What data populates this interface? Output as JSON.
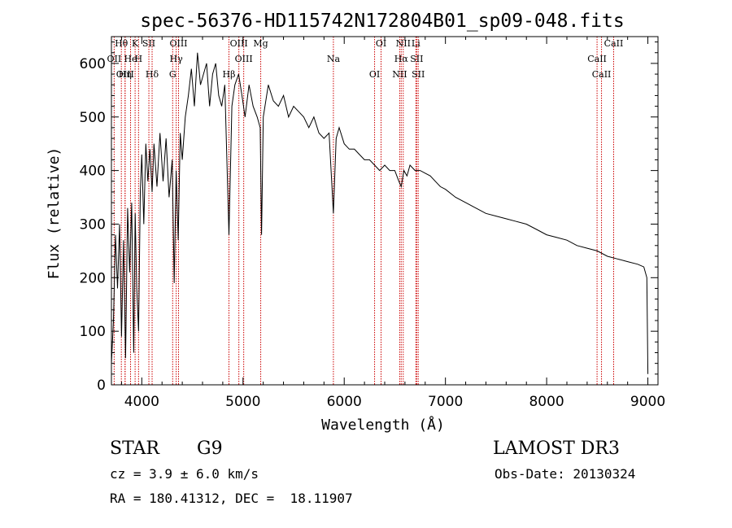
{
  "chart_data": {
    "type": "line",
    "title": "spec-56376-HD115742N172804B01_sp09-048.fits",
    "xlabel": "Wavelength (Å)",
    "ylabel": "Flux (relative)",
    "xlim": [
      3700,
      9100
    ],
    "ylim": [
      0,
      650
    ],
    "xticks": [
      4000,
      5000,
      6000,
      7000,
      8000,
      9000
    ],
    "yticks": [
      0,
      100,
      200,
      300,
      400,
      500,
      600
    ],
    "grid": false,
    "series": [
      {
        "name": "Flux",
        "x": [
          3700,
          3720,
          3740,
          3760,
          3780,
          3800,
          3820,
          3840,
          3860,
          3880,
          3900,
          3920,
          3935,
          3950,
          3968,
          3985,
          4000,
          4020,
          4040,
          4060,
          4080,
          4102,
          4120,
          4150,
          4180,
          4210,
          4240,
          4270,
          4300,
          4320,
          4340,
          4360,
          4380,
          4400,
          4430,
          4460,
          4490,
          4520,
          4550,
          4580,
          4610,
          4640,
          4670,
          4700,
          4730,
          4760,
          4790,
          4820,
          4861,
          4890,
          4920,
          4957,
          4990,
          5020,
          5060,
          5100,
          5140,
          5170,
          5183,
          5200,
          5250,
          5300,
          5350,
          5400,
          5450,
          5500,
          5550,
          5600,
          5650,
          5700,
          5750,
          5800,
          5850,
          5893,
          5920,
          5950,
          6000,
          6050,
          6100,
          6150,
          6200,
          6250,
          6300,
          6350,
          6400,
          6450,
          6500,
          6540,
          6563,
          6590,
          6620,
          6650,
          6700,
          6750,
          6800,
          6850,
          6900,
          6950,
          7000,
          7100,
          7200,
          7300,
          7400,
          7500,
          7600,
          7700,
          7800,
          7900,
          8000,
          8100,
          8200,
          8300,
          8400,
          8500,
          8600,
          8700,
          8800,
          8900,
          8960,
          8990,
          9000
        ],
        "values": [
          40,
          120,
          280,
          180,
          300,
          90,
          270,
          50,
          330,
          210,
          340,
          60,
          320,
          180,
          100,
          360,
          430,
          300,
          450,
          380,
          440,
          360,
          450,
          370,
          470,
          380,
          460,
          350,
          420,
          190,
          400,
          270,
          470,
          420,
          500,
          540,
          590,
          520,
          620,
          560,
          580,
          600,
          520,
          580,
          600,
          540,
          520,
          560,
          280,
          520,
          560,
          580,
          540,
          500,
          560,
          520,
          500,
          480,
          280,
          500,
          560,
          530,
          520,
          540,
          500,
          520,
          510,
          500,
          480,
          500,
          470,
          460,
          470,
          320,
          460,
          480,
          450,
          440,
          440,
          430,
          420,
          420,
          410,
          400,
          410,
          400,
          400,
          380,
          370,
          400,
          390,
          410,
          400,
          400,
          395,
          390,
          380,
          370,
          365,
          350,
          340,
          330,
          320,
          315,
          310,
          305,
          300,
          290,
          280,
          275,
          270,
          260,
          255,
          250,
          240,
          235,
          230,
          225,
          220,
          200,
          20
        ]
      }
    ],
    "lines": [
      {
        "name": "Hθ",
        "x": 3798
      },
      {
        "name": "OII",
        "x": 3727
      },
      {
        "name": "OIII",
        "x": 3835
      },
      {
        "name": "K",
        "x": 3934
      },
      {
        "name": "He",
        "x": 3889
      },
      {
        "name": "Hη",
        "x": 3835
      },
      {
        "name": "SII",
        "x": 4070
      },
      {
        "name": "H",
        "x": 3968
      },
      {
        "name": "Hδ",
        "x": 4102
      },
      {
        "name": "OIII",
        "x": 4363
      },
      {
        "name": "Hγ",
        "x": 4340
      },
      {
        "name": "G",
        "x": 4305
      },
      {
        "name": "OIII",
        "x": 4959
      },
      {
        "name": "OIII",
        "x": 5007
      },
      {
        "name": "Hβ",
        "x": 4861
      },
      {
        "name": "Mg",
        "x": 5175
      },
      {
        "name": "Na",
        "x": 5893
      },
      {
        "name": "OI",
        "x": 6300
      },
      {
        "name": "OI",
        "x": 6364
      },
      {
        "name": "Hα",
        "x": 6563
      },
      {
        "name": "NII",
        "x": 6548
      },
      {
        "name": "NII",
        "x": 6583
      },
      {
        "name": "SII",
        "x": 6716
      },
      {
        "name": "SII",
        "x": 6731
      },
      {
        "name": "Li",
        "x": 6708
      },
      {
        "name": "CaII",
        "x": 8498
      },
      {
        "name": "CaII",
        "x": 8542
      },
      {
        "name": "CaII",
        "x": 8662
      }
    ],
    "line_color": "#cc0000"
  },
  "info": {
    "class": "STAR",
    "subclass": "G9",
    "survey": "LAMOST DR3",
    "cz": "cz = 3.9 ± 6.0 km/s",
    "obs_date": "Obs-Date: 20130324",
    "radec": "RA = 180.41312, DEC =  18.11907"
  }
}
